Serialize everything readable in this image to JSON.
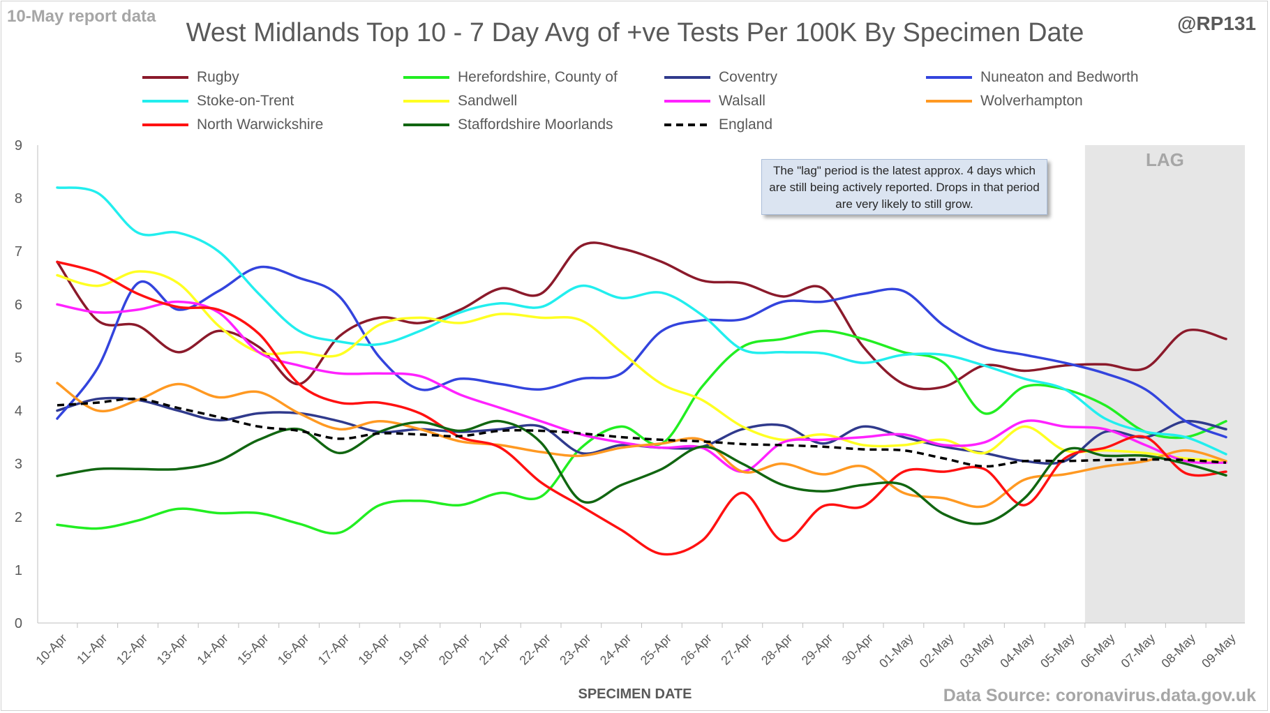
{
  "report_date": "10-May report data",
  "handle": "@RP131",
  "source": "Data Source: coronavirus.data.gov.uk",
  "note": "The \"lag\" period is the latest approx. 4 days which are still being actively reported.  Drops in that period are very likely to still grow.",
  "colors": {
    "Rugby": "#8b1a2b",
    "Herefordshire, County of": "#22ee22",
    "Coventry": "#303a8c",
    "Nuneaton and Bedworth": "#3344dd",
    "Stoke-on-Trent": "#22eeee",
    "Sandwell": "#ffff22",
    "Walsall": "#ff22ff",
    "Wolverhampton": "#ff9922",
    "North Warwickshire": "#ff1111",
    "Staffordshire Moorlands": "#116611",
    "England": "#000000",
    "lag_shade": "#e6e6e6"
  },
  "chart_data": {
    "type": "line",
    "title": "West Midlands Top 10 - 7 Day Avg of +ve Tests Per 100K By Specimen Date",
    "xlabel": "SPECIMEN DATE",
    "ylabel": "",
    "ylim": [
      0,
      9
    ],
    "yticks": [
      0,
      1,
      2,
      3,
      4,
      5,
      6,
      7,
      8,
      9
    ],
    "grid": false,
    "legend_position": "top",
    "lag_label": "LAG",
    "lag_range": [
      "06-May",
      "09-May"
    ],
    "categories": [
      "10-Apr",
      "11-Apr",
      "12-Apr",
      "13-Apr",
      "14-Apr",
      "15-Apr",
      "16-Apr",
      "17-Apr",
      "18-Apr",
      "19-Apr",
      "20-Apr",
      "21-Apr",
      "22-Apr",
      "23-Apr",
      "24-Apr",
      "25-Apr",
      "26-Apr",
      "27-Apr",
      "28-Apr",
      "29-Apr",
      "30-Apr",
      "01-May",
      "02-May",
      "03-May",
      "04-May",
      "05-May",
      "06-May",
      "07-May",
      "08-May",
      "09-May"
    ],
    "series": [
      {
        "name": "Rugby",
        "style": "solid",
        "values": [
          6.8,
          5.7,
          5.6,
          5.1,
          5.5,
          5.2,
          4.5,
          5.4,
          5.75,
          5.65,
          5.9,
          6.3,
          6.2,
          7.1,
          7.05,
          6.8,
          6.45,
          6.4,
          6.15,
          6.3,
          5.2,
          4.5,
          4.45,
          4.85,
          4.75,
          4.85,
          4.87,
          4.8,
          5.5,
          5.35
        ]
      },
      {
        "name": "Herefordshire, County of",
        "style": "solid",
        "values": [
          1.85,
          1.78,
          1.93,
          2.15,
          2.07,
          2.07,
          1.87,
          1.7,
          2.22,
          2.3,
          2.22,
          2.45,
          2.38,
          3.3,
          3.7,
          3.38,
          4.45,
          5.2,
          5.35,
          5.5,
          5.35,
          5.1,
          4.9,
          3.95,
          4.45,
          4.4,
          4.1,
          3.6,
          3.5,
          3.8
        ]
      },
      {
        "name": "Coventry",
        "style": "solid",
        "values": [
          4.0,
          4.22,
          4.2,
          4.0,
          3.82,
          3.95,
          3.95,
          3.8,
          3.6,
          3.65,
          3.6,
          3.65,
          3.7,
          3.2,
          3.35,
          3.3,
          3.32,
          3.65,
          3.72,
          3.38,
          3.7,
          3.5,
          3.32,
          3.2,
          3.05,
          3.05,
          3.6,
          3.5,
          3.8,
          3.65
        ]
      },
      {
        "name": "Nuneaton and Bedworth",
        "style": "solid",
        "values": [
          3.85,
          4.8,
          6.4,
          5.9,
          6.25,
          6.7,
          6.5,
          6.15,
          5.0,
          4.4,
          4.6,
          4.5,
          4.4,
          4.6,
          4.7,
          5.5,
          5.7,
          5.72,
          6.05,
          6.05,
          6.2,
          6.25,
          5.6,
          5.2,
          5.05,
          4.9,
          4.7,
          4.4,
          3.8,
          3.5
        ]
      },
      {
        "name": "Stoke-on-Trent",
        "style": "solid",
        "values": [
          8.2,
          8.1,
          7.35,
          7.35,
          7.0,
          6.2,
          5.5,
          5.3,
          5.25,
          5.5,
          5.85,
          6.02,
          5.95,
          6.35,
          6.12,
          6.22,
          5.8,
          5.15,
          5.1,
          5.08,
          4.9,
          5.05,
          5.05,
          4.85,
          4.6,
          4.4,
          3.85,
          3.6,
          3.5,
          3.18
        ]
      },
      {
        "name": "Sandwell",
        "style": "solid",
        "values": [
          6.55,
          6.35,
          6.62,
          6.4,
          5.6,
          5.1,
          5.1,
          5.05,
          5.62,
          5.75,
          5.65,
          5.82,
          5.75,
          5.7,
          5.1,
          4.5,
          4.2,
          3.7,
          3.45,
          3.55,
          3.35,
          3.35,
          3.45,
          3.2,
          3.7,
          3.25,
          3.25,
          3.2,
          3.1,
          3.05
        ]
      },
      {
        "name": "Walsall",
        "style": "solid",
        "values": [
          6.0,
          5.85,
          5.9,
          6.05,
          5.85,
          5.1,
          4.85,
          4.7,
          4.7,
          4.65,
          4.3,
          4.05,
          3.8,
          3.55,
          3.4,
          3.3,
          3.3,
          2.85,
          3.4,
          3.45,
          3.5,
          3.55,
          3.35,
          3.4,
          3.8,
          3.7,
          3.65,
          3.35,
          3.05,
          3.02
        ]
      },
      {
        "name": "Wolverhampton",
        "style": "solid",
        "values": [
          4.52,
          4.0,
          4.2,
          4.5,
          4.25,
          4.35,
          3.95,
          3.65,
          3.8,
          3.65,
          3.42,
          3.35,
          3.22,
          3.15,
          3.3,
          3.38,
          3.45,
          2.85,
          3.0,
          2.8,
          2.95,
          2.45,
          2.35,
          2.2,
          2.7,
          2.8,
          2.95,
          3.05,
          3.25,
          3.05
        ]
      },
      {
        "name": "North Warwickshire",
        "style": "solid",
        "values": [
          6.8,
          6.6,
          6.2,
          5.95,
          5.9,
          5.45,
          4.5,
          4.15,
          4.15,
          3.95,
          3.5,
          3.3,
          2.65,
          2.2,
          1.75,
          1.3,
          1.55,
          2.45,
          1.55,
          2.2,
          2.2,
          2.85,
          2.85,
          2.9,
          2.22,
          3.1,
          3.3,
          3.5,
          2.82,
          2.85
        ]
      },
      {
        "name": "Staffordshire Moorlands",
        "style": "solid",
        "values": [
          2.77,
          2.9,
          2.9,
          2.9,
          3.05,
          3.45,
          3.65,
          3.2,
          3.6,
          3.78,
          3.62,
          3.8,
          3.4,
          2.3,
          2.6,
          2.9,
          3.32,
          3.0,
          2.6,
          2.48,
          2.6,
          2.6,
          2.05,
          1.88,
          2.35,
          3.25,
          3.15,
          3.15,
          3.0,
          2.78
        ]
      },
      {
        "name": "England",
        "style": "dashed",
        "values": [
          4.1,
          4.15,
          4.22,
          4.05,
          3.88,
          3.7,
          3.62,
          3.47,
          3.57,
          3.55,
          3.52,
          3.62,
          3.62,
          3.57,
          3.5,
          3.45,
          3.42,
          3.37,
          3.35,
          3.32,
          3.27,
          3.25,
          3.1,
          2.95,
          3.05,
          3.05,
          3.07,
          3.08,
          3.07,
          3.02
        ]
      }
    ]
  }
}
